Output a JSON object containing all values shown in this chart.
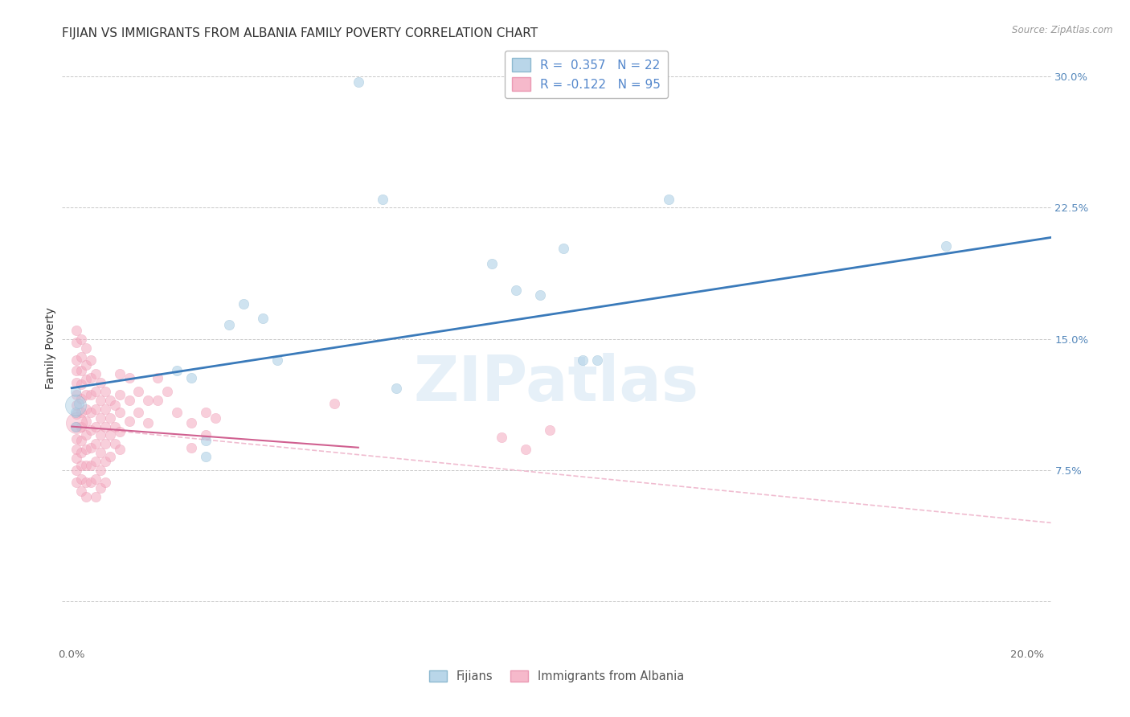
{
  "title": "FIJIAN VS IMMIGRANTS FROM ALBANIA FAMILY POVERTY CORRELATION CHART",
  "source": "Source: ZipAtlas.com",
  "ylabel_label": "Family Poverty",
  "x_ticks": [
    0.0,
    0.05,
    0.1,
    0.15,
    0.2
  ],
  "y_ticks": [
    0.0,
    0.075,
    0.15,
    0.225,
    0.3
  ],
  "xlim": [
    -0.002,
    0.205
  ],
  "ylim": [
    -0.025,
    0.315
  ],
  "watermark": "ZIPatlas",
  "legend_blue_label": "Fijians",
  "legend_pink_label": "Immigrants from Albania",
  "blue_scatter": [
    [
      0.0008,
      0.12
    ],
    [
      0.0008,
      0.108
    ],
    [
      0.0008,
      0.1
    ],
    [
      0.0015,
      0.113
    ],
    [
      0.022,
      0.132
    ],
    [
      0.025,
      0.128
    ],
    [
      0.028,
      0.092
    ],
    [
      0.028,
      0.083
    ],
    [
      0.033,
      0.158
    ],
    [
      0.036,
      0.17
    ],
    [
      0.04,
      0.162
    ],
    [
      0.043,
      0.138
    ],
    [
      0.06,
      0.297
    ],
    [
      0.065,
      0.23
    ],
    [
      0.068,
      0.122
    ],
    [
      0.088,
      0.193
    ],
    [
      0.093,
      0.178
    ],
    [
      0.098,
      0.175
    ],
    [
      0.103,
      0.202
    ],
    [
      0.107,
      0.138
    ],
    [
      0.11,
      0.138
    ],
    [
      0.125,
      0.23
    ],
    [
      0.183,
      0.203
    ]
  ],
  "blue_line": [
    [
      0.0,
      0.122
    ],
    [
      0.205,
      0.208
    ]
  ],
  "pink_scatter": [
    [
      0.001,
      0.155
    ],
    [
      0.001,
      0.148
    ],
    [
      0.001,
      0.138
    ],
    [
      0.001,
      0.132
    ],
    [
      0.001,
      0.125
    ],
    [
      0.001,
      0.118
    ],
    [
      0.001,
      0.112
    ],
    [
      0.001,
      0.107
    ],
    [
      0.001,
      0.1
    ],
    [
      0.001,
      0.093
    ],
    [
      0.001,
      0.087
    ],
    [
      0.001,
      0.082
    ],
    [
      0.001,
      0.075
    ],
    [
      0.001,
      0.068
    ],
    [
      0.002,
      0.15
    ],
    [
      0.002,
      0.14
    ],
    [
      0.002,
      0.132
    ],
    [
      0.002,
      0.124
    ],
    [
      0.002,
      0.116
    ],
    [
      0.002,
      0.108
    ],
    [
      0.002,
      0.1
    ],
    [
      0.002,
      0.092
    ],
    [
      0.002,
      0.085
    ],
    [
      0.002,
      0.078
    ],
    [
      0.002,
      0.07
    ],
    [
      0.002,
      0.063
    ],
    [
      0.003,
      0.145
    ],
    [
      0.003,
      0.135
    ],
    [
      0.003,
      0.127
    ],
    [
      0.003,
      0.118
    ],
    [
      0.003,
      0.11
    ],
    [
      0.003,
      0.103
    ],
    [
      0.003,
      0.095
    ],
    [
      0.003,
      0.087
    ],
    [
      0.003,
      0.078
    ],
    [
      0.003,
      0.068
    ],
    [
      0.003,
      0.06
    ],
    [
      0.004,
      0.138
    ],
    [
      0.004,
      0.128
    ],
    [
      0.004,
      0.118
    ],
    [
      0.004,
      0.108
    ],
    [
      0.004,
      0.098
    ],
    [
      0.004,
      0.088
    ],
    [
      0.004,
      0.078
    ],
    [
      0.004,
      0.068
    ],
    [
      0.005,
      0.13
    ],
    [
      0.005,
      0.12
    ],
    [
      0.005,
      0.11
    ],
    [
      0.005,
      0.1
    ],
    [
      0.005,
      0.09
    ],
    [
      0.005,
      0.08
    ],
    [
      0.005,
      0.07
    ],
    [
      0.005,
      0.06
    ],
    [
      0.006,
      0.125
    ],
    [
      0.006,
      0.115
    ],
    [
      0.006,
      0.105
    ],
    [
      0.006,
      0.095
    ],
    [
      0.006,
      0.085
    ],
    [
      0.006,
      0.075
    ],
    [
      0.006,
      0.065
    ],
    [
      0.007,
      0.12
    ],
    [
      0.007,
      0.11
    ],
    [
      0.007,
      0.1
    ],
    [
      0.007,
      0.09
    ],
    [
      0.007,
      0.08
    ],
    [
      0.007,
      0.068
    ],
    [
      0.008,
      0.115
    ],
    [
      0.008,
      0.105
    ],
    [
      0.008,
      0.095
    ],
    [
      0.008,
      0.083
    ],
    [
      0.009,
      0.112
    ],
    [
      0.009,
      0.1
    ],
    [
      0.009,
      0.09
    ],
    [
      0.01,
      0.13
    ],
    [
      0.01,
      0.118
    ],
    [
      0.01,
      0.108
    ],
    [
      0.01,
      0.097
    ],
    [
      0.01,
      0.087
    ],
    [
      0.012,
      0.128
    ],
    [
      0.012,
      0.115
    ],
    [
      0.012,
      0.103
    ],
    [
      0.014,
      0.12
    ],
    [
      0.014,
      0.108
    ],
    [
      0.016,
      0.115
    ],
    [
      0.016,
      0.102
    ],
    [
      0.018,
      0.128
    ],
    [
      0.018,
      0.115
    ],
    [
      0.02,
      0.12
    ],
    [
      0.022,
      0.108
    ],
    [
      0.025,
      0.102
    ],
    [
      0.025,
      0.088
    ],
    [
      0.028,
      0.108
    ],
    [
      0.028,
      0.095
    ],
    [
      0.03,
      0.105
    ],
    [
      0.055,
      0.113
    ],
    [
      0.09,
      0.094
    ],
    [
      0.095,
      0.087
    ],
    [
      0.1,
      0.098
    ]
  ],
  "pink_line_solid": [
    [
      0.0,
      0.1
    ],
    [
      0.06,
      0.088
    ]
  ],
  "pink_line_dash": [
    [
      0.0,
      0.1
    ],
    [
      0.205,
      0.045
    ]
  ],
  "background_color": "#ffffff",
  "blue_color": "#a8cce4",
  "blue_edge_color": "#7aadc8",
  "pink_color": "#f4a8be",
  "pink_edge_color": "#e88aa8",
  "blue_line_color": "#3a7aba",
  "pink_line_color": "#d06090",
  "pink_dash_color": "#f0bcd0",
  "grid_color": "#c8c8c8",
  "title_fontsize": 11,
  "axis_label_fontsize": 10,
  "tick_fontsize": 9.5,
  "dot_size": 80,
  "dot_alpha": 0.55,
  "large_blue_dot_size": 350,
  "large_pink_dot_size": 350
}
